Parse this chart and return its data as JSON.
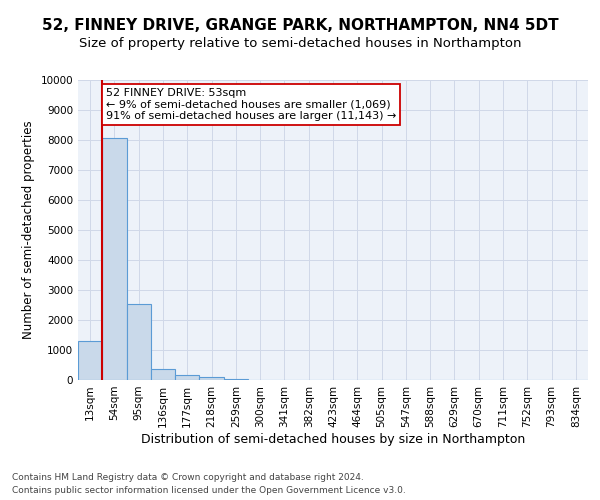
{
  "title": "52, FINNEY DRIVE, GRANGE PARK, NORTHAMPTON, NN4 5DT",
  "subtitle": "Size of property relative to semi-detached houses in Northampton",
  "xlabel": "Distribution of semi-detached houses by size in Northampton",
  "ylabel": "Number of semi-detached properties",
  "footer1": "Contains HM Land Registry data © Crown copyright and database right 2024.",
  "footer2": "Contains public sector information licensed under the Open Government Licence v3.0.",
  "bar_labels": [
    "13sqm",
    "54sqm",
    "95sqm",
    "136sqm",
    "177sqm",
    "218sqm",
    "259sqm",
    "300sqm",
    "341sqm",
    "382sqm",
    "423sqm",
    "464sqm",
    "505sqm",
    "547sqm",
    "588sqm",
    "629sqm",
    "670sqm",
    "711sqm",
    "752sqm",
    "793sqm",
    "834sqm"
  ],
  "bar_values": [
    1300,
    8050,
    2520,
    380,
    155,
    105,
    25,
    0,
    0,
    0,
    0,
    0,
    0,
    0,
    0,
    0,
    0,
    0,
    0,
    0,
    0
  ],
  "bar_color": "#c9d9ea",
  "bar_edge_color": "#5b9bd5",
  "grid_color": "#d0d8e8",
  "bg_color": "#edf2f9",
  "annotation_line1": "52 FINNEY DRIVE: 53sqm",
  "annotation_line2": "← 9% of semi-detached houses are smaller (1,069)",
  "annotation_line3": "91% of semi-detached houses are larger (11,143) →",
  "vline_color": "#cc0000",
  "annotation_box_color": "#ffffff",
  "annotation_box_edge": "#cc0000",
  "ylim": [
    0,
    10000
  ],
  "yticks": [
    0,
    1000,
    2000,
    3000,
    4000,
    5000,
    6000,
    7000,
    8000,
    9000,
    10000
  ],
  "title_fontsize": 11,
  "subtitle_fontsize": 9.5,
  "ylabel_fontsize": 8.5,
  "xlabel_fontsize": 9,
  "tick_fontsize": 7.5,
  "annot_fontsize": 8
}
